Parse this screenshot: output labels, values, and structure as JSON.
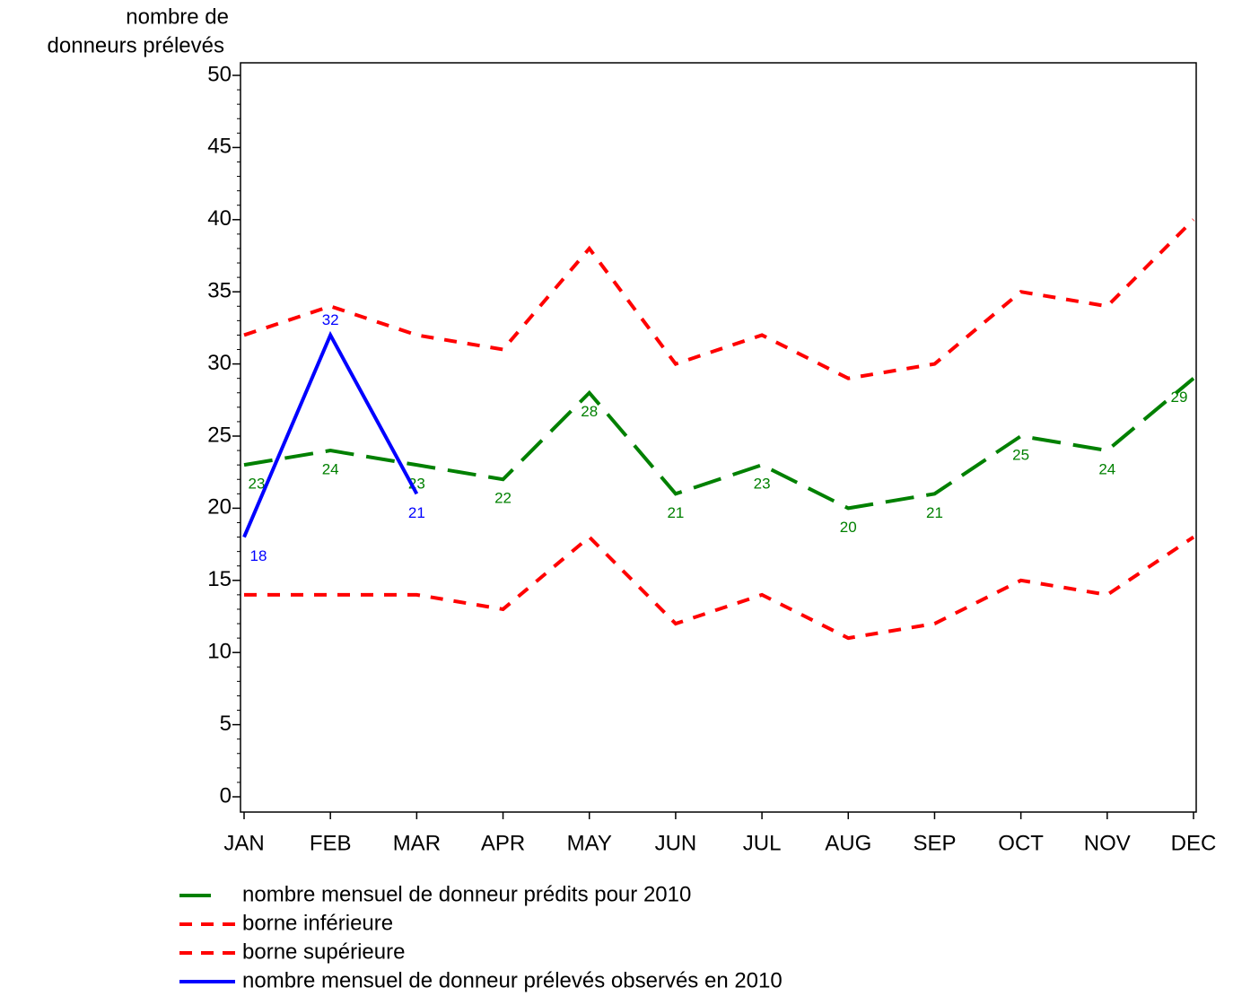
{
  "chart_data": {
    "type": "line",
    "y_label_lines": [
      "nombre de",
      "donneurs prélevés"
    ],
    "categories": [
      "JAN",
      "FEB",
      "MAR",
      "APR",
      "MAY",
      "JUN",
      "JUL",
      "AUG",
      "SEP",
      "OCT",
      "NOV",
      "DEC"
    ],
    "ylim": [
      0,
      50
    ],
    "yticks": [
      0,
      5,
      10,
      15,
      20,
      25,
      30,
      35,
      40,
      45,
      50
    ],
    "series": [
      {
        "name": "nombre mensuel de donneur prédits pour 2010",
        "color": "#008000",
        "dash": "long",
        "show_values": true,
        "values": [
          23,
          24,
          23,
          22,
          28,
          21,
          23,
          20,
          21,
          25,
          24,
          29
        ]
      },
      {
        "name": "borne inférieure",
        "color": "#ff0000",
        "dash": "short",
        "show_values": false,
        "values": [
          14,
          14,
          14,
          13,
          18,
          12,
          14,
          11,
          12,
          15,
          14,
          18
        ]
      },
      {
        "name": "borne supérieure",
        "color": "#ff0000",
        "dash": "short",
        "show_values": false,
        "values": [
          32,
          34,
          32,
          31,
          38,
          30,
          32,
          29,
          30,
          35,
          34,
          40
        ]
      },
      {
        "name": "nombre mensuel de donneur prélevés observés en 2010",
        "color": "#0000ff",
        "dash": "solid",
        "show_values": true,
        "values": [
          18,
          32,
          21,
          null,
          null,
          null,
          null,
          null,
          null,
          null,
          null,
          null
        ]
      }
    ]
  }
}
